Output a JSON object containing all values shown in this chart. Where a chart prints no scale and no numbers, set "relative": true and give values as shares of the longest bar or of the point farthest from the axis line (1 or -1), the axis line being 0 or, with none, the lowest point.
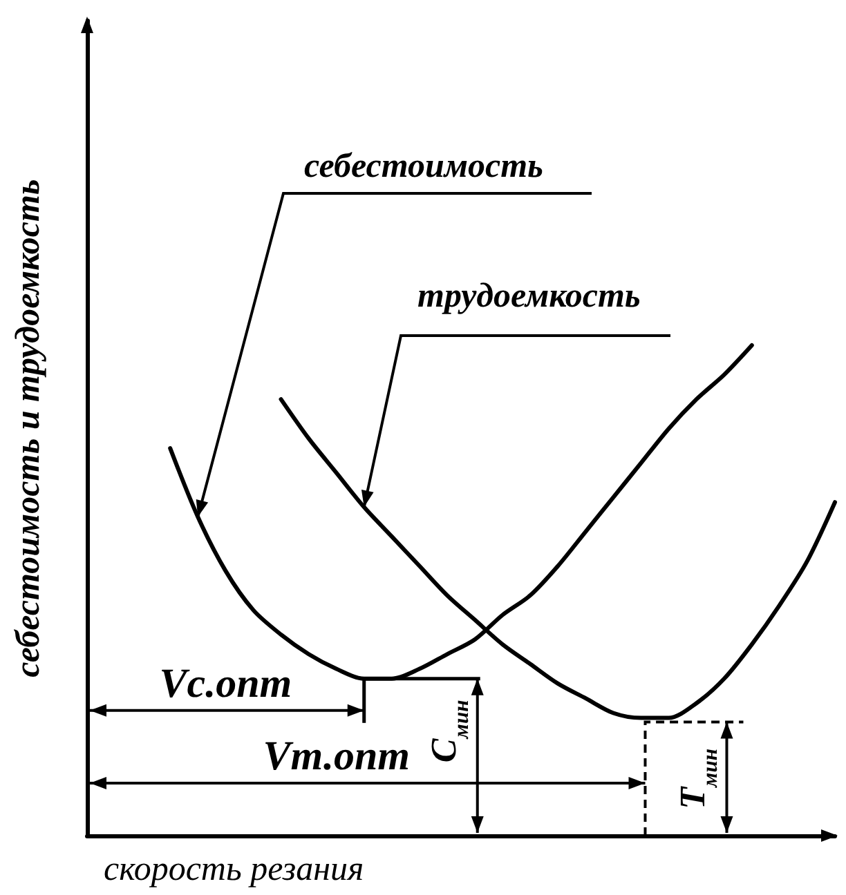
{
  "chart_data": {
    "type": "line",
    "relative": true,
    "xlabel": "скорость резания",
    "ylabel": "себестоимость и трудоемкость",
    "categories": [
      null,
      null,
      null,
      null,
      null,
      null,
      null,
      null,
      null,
      null,
      null,
      null,
      null,
      null,
      null,
      null,
      null,
      null,
      null,
      null,
      null,
      null,
      null,
      null,
      null,
      null,
      null,
      null
    ],
    "series": [
      {
        "name": "себестоимость",
        "color": "#000000",
        "values": [
          null,
          null,
          null,
          0.79,
          0.65,
          0.54,
          0.46,
          0.41,
          0.37,
          0.34,
          0.32,
          0.32,
          0.34,
          0.37,
          0.4,
          0.45,
          0.49,
          0.55,
          0.62,
          0.69,
          0.76,
          0.83,
          0.89,
          0.94,
          1,
          null,
          null,
          null
        ]
      },
      {
        "name": "трудоемкость",
        "color": "#000000",
        "values": [
          null,
          null,
          null,
          null,
          null,
          null,
          null,
          0.89,
          0.81,
          0.74,
          0.67,
          0.61,
          0.55,
          0.49,
          0.44,
          0.39,
          0.35,
          0.31,
          0.28,
          0.25,
          0.24,
          0.24,
          0.27,
          0.32,
          0.39,
          0.47,
          0.56,
          0.68
        ]
      }
    ],
    "annotations": [
      "Vc.опт",
      "C$_{мин}$",
      "Vт.опт",
      "T$_{мин}$"
    ],
    "marker": "none",
    "line_style": "solid",
    "grid": false,
    "legend": false
  }
}
